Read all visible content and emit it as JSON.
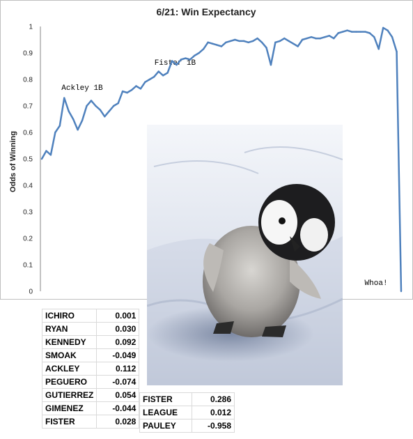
{
  "chart_data": {
    "type": "line",
    "title": "6/21: Win Expectancy",
    "ylabel": "Odds of Winning",
    "xlabel": "",
    "ylim": [
      0,
      1
    ],
    "yticks": [
      "0",
      "0.1",
      "0.2",
      "0.3",
      "0.4",
      "0.5",
      "0.6",
      "0.7",
      "0.8",
      "0.9",
      "1"
    ],
    "grid": false,
    "legend": "none",
    "line_color": "#4f81bd",
    "series": [
      {
        "values": [
          0.5,
          0.53,
          0.515,
          0.6,
          0.625,
          0.73,
          0.68,
          0.65,
          0.61,
          0.645,
          0.7,
          0.72,
          0.7,
          0.685,
          0.66,
          0.68,
          0.7,
          0.71,
          0.755,
          0.75,
          0.76,
          0.775,
          0.765,
          0.79,
          0.8,
          0.81,
          0.83,
          0.815,
          0.825,
          0.87,
          0.855,
          0.875,
          0.88,
          0.875,
          0.89,
          0.9,
          0.915,
          0.94,
          0.935,
          0.93,
          0.925,
          0.94,
          0.945,
          0.95,
          0.945,
          0.945,
          0.94,
          0.945,
          0.955,
          0.94,
          0.92,
          0.855,
          0.94,
          0.945,
          0.955,
          0.945,
          0.935,
          0.925,
          0.95,
          0.955,
          0.96,
          0.955,
          0.955,
          0.96,
          0.965,
          0.955,
          0.975,
          0.98,
          0.985,
          0.98,
          0.98,
          0.98,
          0.98,
          0.975,
          0.96,
          0.915,
          0.995,
          0.985,
          0.96,
          0.905,
          0.0
        ]
      }
    ],
    "annotations": [
      {
        "text": "Ackley 1B",
        "x": 5
      },
      {
        "text": "Fister 1B",
        "x": 26
      },
      {
        "text": "Whoa!",
        "x": 79
      }
    ]
  },
  "table_left": [
    {
      "name": "ICHIRO",
      "value": "0.001"
    },
    {
      "name": "RYAN",
      "value": "0.030"
    },
    {
      "name": "KENNEDY",
      "value": "0.092"
    },
    {
      "name": "SMOAK",
      "value": "-0.049"
    },
    {
      "name": "ACKLEY",
      "value": "0.112"
    },
    {
      "name": "PEGUERO",
      "value": "-0.074"
    },
    {
      "name": "GUTIERREZ",
      "value": "0.054"
    },
    {
      "name": "GIMENEZ",
      "value": "-0.044"
    },
    {
      "name": "FISTER",
      "value": "0.028"
    }
  ],
  "table_right": [
    {
      "name": "FISTER",
      "value": "0.286"
    },
    {
      "name": "LEAGUE",
      "value": "0.012"
    },
    {
      "name": "PAULEY",
      "value": "-0.958"
    }
  ]
}
